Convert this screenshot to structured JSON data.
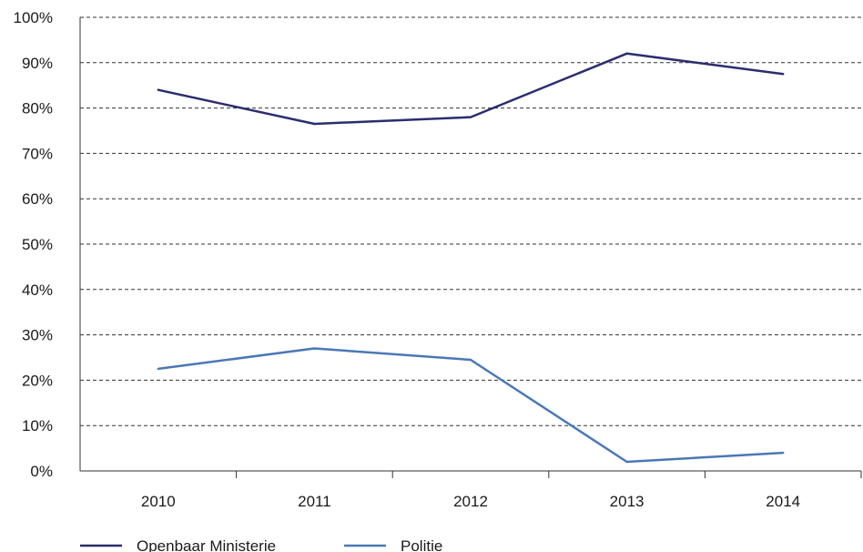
{
  "chart_data": {
    "type": "line",
    "categories": [
      "2010",
      "2011",
      "2012",
      "2013",
      "2014"
    ],
    "series": [
      {
        "name": "Openbaar Ministerie",
        "values": [
          84,
          76.5,
          78,
          92,
          87.5
        ],
        "color": "#2b2d6e"
      },
      {
        "name": "Politie",
        "values": [
          22.5,
          27,
          24.5,
          2,
          4
        ],
        "color": "#4a78b5"
      }
    ],
    "yticks": [
      "0%",
      "10%",
      "20%",
      "30%",
      "40%",
      "50%",
      "60%",
      "70%",
      "80%",
      "90%",
      "100%"
    ],
    "ylim": [
      0,
      100
    ],
    "grid": true,
    "grid_style": "dashed",
    "legend_position": "bottom-left"
  }
}
